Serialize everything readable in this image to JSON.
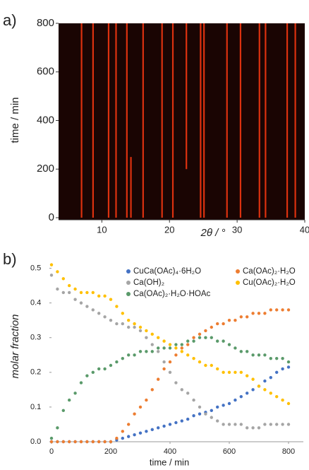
{
  "chart_data": [
    {
      "type": "heatmap",
      "panel_label": "a)",
      "xlabel": "2θ / °",
      "ylabel": "time / min",
      "xlim": [
        3.6,
        40
      ],
      "ylim": [
        0,
        800
      ],
      "xticks": [
        10,
        20,
        30,
        40
      ],
      "yticks": [
        0,
        200,
        400,
        600,
        800
      ],
      "background": "#1a0503",
      "line_color": "#ff3a12",
      "peaks": [
        {
          "two_theta": 7.0,
          "from": 0,
          "to": 800
        },
        {
          "two_theta": 8.7,
          "from": 0,
          "to": 800
        },
        {
          "two_theta": 11.0,
          "from": 0,
          "to": 800
        },
        {
          "two_theta": 12.1,
          "from": 0,
          "to": 800
        },
        {
          "two_theta": 13.7,
          "from": 0,
          "to": 800
        },
        {
          "two_theta": 14.3,
          "from": 0,
          "to": 250
        },
        {
          "two_theta": 16.1,
          "from": 0,
          "to": 800
        },
        {
          "two_theta": 18.9,
          "from": 0,
          "to": 800
        },
        {
          "two_theta": 20.5,
          "from": 0,
          "to": 800
        },
        {
          "two_theta": 22.5,
          "from": 200,
          "to": 800
        },
        {
          "two_theta": 24.6,
          "from": 0,
          "to": 800
        },
        {
          "two_theta": 25.1,
          "from": 0,
          "to": 800
        },
        {
          "two_theta": 28.5,
          "from": 0,
          "to": 800
        },
        {
          "two_theta": 30.5,
          "from": 0,
          "to": 800
        },
        {
          "two_theta": 33.3,
          "from": 0,
          "to": 800
        },
        {
          "two_theta": 34.2,
          "from": 0,
          "to": 800
        },
        {
          "two_theta": 37.4,
          "from": 0,
          "to": 800
        },
        {
          "two_theta": 38.6,
          "from": 0,
          "to": 800
        }
      ]
    },
    {
      "type": "scatter",
      "panel_label": "b)",
      "xlabel": "time / min",
      "ylabel": "molar fraction",
      "xlim": [
        0,
        850
      ],
      "ylim": [
        0,
        0.55
      ],
      "xticks": [
        0,
        200,
        400,
        600,
        800
      ],
      "yticks": [
        {
          "value": 0,
          "label": "0.0"
        },
        0.1,
        0.2,
        0.3,
        0.4,
        0.5
      ],
      "legend": "upper-right",
      "x": [
        0,
        20,
        40,
        60,
        80,
        100,
        120,
        140,
        160,
        180,
        200,
        220,
        240,
        260,
        280,
        300,
        320,
        340,
        360,
        380,
        400,
        420,
        440,
        460,
        480,
        500,
        520,
        540,
        560,
        580,
        600,
        620,
        640,
        660,
        680,
        700,
        720,
        740,
        760,
        780,
        800
      ],
      "series": [
        {
          "name": "CuCa(OAc)₄·6H₂O",
          "color": "#4472c4",
          "values": [
            0,
            0,
            0,
            0,
            0,
            0,
            0,
            0,
            0,
            0,
            0,
            0.005,
            0.01,
            0.015,
            0.02,
            0.025,
            0.03,
            0.035,
            0.04,
            0.045,
            0.05,
            0.055,
            0.06,
            0.065,
            0.075,
            0.08,
            0.085,
            0.09,
            0.1,
            0.105,
            0.11,
            0.12,
            0.13,
            0.14,
            0.15,
            0.16,
            0.175,
            0.185,
            0.2,
            0.21,
            0.215
          ]
        },
        {
          "name": "Ca(OAc)₂·H₂O",
          "color": "#ed7d31",
          "values": [
            0,
            0,
            0,
            0,
            0,
            0,
            0,
            0,
            0,
            0,
            0,
            0.01,
            0.03,
            0.05,
            0.08,
            0.1,
            0.12,
            0.15,
            0.18,
            0.21,
            0.23,
            0.25,
            0.27,
            0.28,
            0.3,
            0.31,
            0.32,
            0.33,
            0.34,
            0.34,
            0.35,
            0.35,
            0.36,
            0.36,
            0.37,
            0.37,
            0.37,
            0.38,
            0.38,
            0.38,
            0.38
          ]
        },
        {
          "name": "Ca(OH)₂",
          "color": "#a5a5a5",
          "values": [
            0.48,
            0.44,
            0.43,
            0.43,
            0.41,
            0.4,
            0.39,
            0.38,
            0.37,
            0.36,
            0.35,
            0.34,
            0.34,
            0.33,
            0.33,
            0.32,
            0.3,
            0.28,
            0.26,
            0.23,
            0.2,
            0.17,
            0.15,
            0.14,
            0.12,
            0.1,
            0.08,
            0.07,
            0.06,
            0.05,
            0.05,
            0.05,
            0.05,
            0.04,
            0.04,
            0.04,
            0.05,
            0.05,
            0.05,
            0.05,
            0.05
          ]
        },
        {
          "name": "Cu(OAc)₂·H₂O",
          "color": "#ffc000",
          "values": [
            0.51,
            0.49,
            0.47,
            0.45,
            0.44,
            0.43,
            0.43,
            0.43,
            0.42,
            0.42,
            0.41,
            0.39,
            0.37,
            0.35,
            0.34,
            0.33,
            0.32,
            0.31,
            0.3,
            0.29,
            0.28,
            0.27,
            0.26,
            0.25,
            0.24,
            0.23,
            0.22,
            0.22,
            0.21,
            0.2,
            0.2,
            0.2,
            0.2,
            0.19,
            0.18,
            0.16,
            0.15,
            0.14,
            0.13,
            0.12,
            0.11
          ]
        },
        {
          "name": "Ca(OAc)₂·H₂O·HOAc",
          "color": "#5a9a6a",
          "values": [
            0.01,
            0.04,
            0.09,
            0.12,
            0.14,
            0.17,
            0.19,
            0.2,
            0.21,
            0.21,
            0.22,
            0.23,
            0.24,
            0.25,
            0.25,
            0.26,
            0.26,
            0.26,
            0.27,
            0.27,
            0.27,
            0.28,
            0.28,
            0.29,
            0.29,
            0.3,
            0.3,
            0.3,
            0.29,
            0.29,
            0.28,
            0.27,
            0.26,
            0.26,
            0.25,
            0.25,
            0.25,
            0.24,
            0.24,
            0.24,
            0.23
          ]
        }
      ]
    }
  ]
}
